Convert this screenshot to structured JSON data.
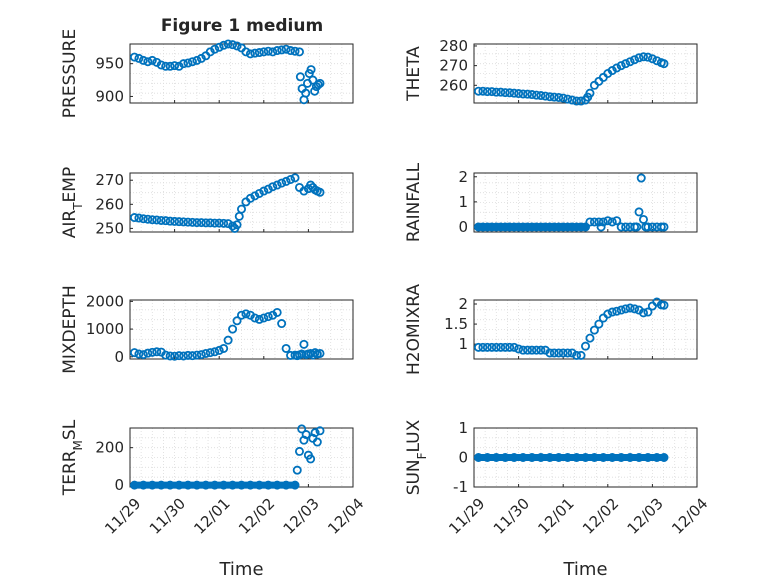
{
  "figure": {
    "title": "Figure 1 medium",
    "x_axis_label": "Time",
    "x_ticks": [
      "11/29",
      "11/30",
      "12/01",
      "12/02",
      "12/03",
      "12/04"
    ]
  },
  "colors": {
    "marker": "#0072BD",
    "axes": "#262626",
    "grid": "#dcdcdc"
  },
  "chart_data": [
    {
      "type": "scatter",
      "ylabel": "PRESSURE",
      "ylim": [
        890,
        980
      ],
      "yticks": [
        900,
        950
      ],
      "xlim": [
        "11/29",
        "12/04"
      ],
      "grid": true,
      "x": [
        0.1,
        0.2,
        0.3,
        0.4,
        0.5,
        0.6,
        0.7,
        0.8,
        0.9,
        1.0,
        1.1,
        1.2,
        1.3,
        1.4,
        1.5,
        1.6,
        1.7,
        1.8,
        1.9,
        2.0,
        2.1,
        2.2,
        2.3,
        2.4,
        2.5,
        2.6,
        2.7,
        2.8,
        2.9,
        3.0,
        3.1,
        3.2,
        3.3,
        3.4,
        3.5,
        3.6,
        3.7,
        3.8,
        3.82,
        3.86,
        3.9,
        3.94,
        3.98,
        4.02,
        4.06,
        4.1,
        4.14,
        4.18,
        4.22,
        4.26
      ],
      "values": [
        960,
        958,
        955,
        953,
        955,
        952,
        948,
        946,
        946,
        947,
        946,
        950,
        951,
        953,
        955,
        958,
        962,
        968,
        972,
        975,
        978,
        980,
        979,
        977,
        974,
        968,
        965,
        966,
        967,
        968,
        969,
        968,
        970,
        971,
        972,
        970,
        969,
        968,
        930,
        912,
        895,
        905,
        920,
        935,
        941,
        925,
        908,
        915,
        918,
        920
      ]
    },
    {
      "type": "scatter",
      "ylabel": "THETA",
      "ylim": [
        251,
        281
      ],
      "yticks": [
        260,
        270,
        280
      ],
      "xlim": [
        "11/29",
        "12/04"
      ],
      "grid": true,
      "x": [
        0.1,
        0.2,
        0.3,
        0.4,
        0.5,
        0.6,
        0.7,
        0.8,
        0.9,
        1.0,
        1.1,
        1.2,
        1.3,
        1.4,
        1.5,
        1.6,
        1.7,
        1.8,
        1.9,
        2.0,
        2.1,
        2.2,
        2.3,
        2.4,
        2.5,
        2.55,
        2.6,
        2.7,
        2.8,
        2.9,
        3.0,
        3.1,
        3.2,
        3.3,
        3.4,
        3.5,
        3.6,
        3.7,
        3.8,
        3.9,
        4.0,
        4.1,
        4.2,
        4.26
      ],
      "values": [
        257,
        257,
        256.8,
        256.8,
        256.5,
        256.5,
        256.3,
        256.2,
        256,
        255.8,
        255.6,
        255.5,
        255.3,
        255,
        254.8,
        254.5,
        254.2,
        254,
        253.8,
        253.5,
        253,
        252.5,
        252,
        252,
        252.5,
        254,
        256,
        260,
        262,
        264,
        266,
        267.5,
        268.8,
        270,
        271,
        272,
        273,
        274,
        274.5,
        274.3,
        273.5,
        272.5,
        271.5,
        271
      ]
    },
    {
      "type": "scatter",
      "ylabel": "AIR_TEMP",
      "ylim": [
        248.5,
        273
      ],
      "yticks": [
        250,
        260,
        270
      ],
      "xlim": [
        "11/29",
        "12/04"
      ],
      "grid": true,
      "x": [
        0.1,
        0.2,
        0.3,
        0.4,
        0.5,
        0.6,
        0.7,
        0.8,
        0.9,
        1.0,
        1.1,
        1.2,
        1.3,
        1.4,
        1.5,
        1.6,
        1.7,
        1.8,
        1.9,
        2.0,
        2.1,
        2.2,
        2.3,
        2.35,
        2.4,
        2.45,
        2.5,
        2.6,
        2.7,
        2.8,
        2.9,
        3.0,
        3.1,
        3.2,
        3.3,
        3.4,
        3.5,
        3.6,
        3.7,
        3.8,
        3.9,
        4.0,
        4.05,
        4.1,
        4.15,
        4.2,
        4.26
      ],
      "values": [
        254.5,
        254.3,
        254,
        253.8,
        253.6,
        253.5,
        253.3,
        253.2,
        253,
        252.9,
        252.8,
        252.7,
        252.6,
        252.5,
        252.4,
        252.4,
        252.3,
        252.3,
        252.2,
        252.2,
        252.1,
        252,
        251,
        250,
        251.5,
        255,
        258,
        261,
        262.5,
        263.5,
        264.5,
        265.5,
        266.3,
        267.3,
        268,
        268.8,
        269.5,
        270.3,
        271,
        267,
        265.5,
        266.5,
        268,
        267,
        266,
        265.5,
        265
      ]
    },
    {
      "type": "scatter",
      "ylabel": "RAINFALL",
      "ylim": [
        -0.2,
        2.15
      ],
      "yticks": [
        0,
        1,
        2
      ],
      "xlim": [
        "11/29",
        "12/04"
      ],
      "grid": true,
      "x": [
        0.1,
        0.2,
        0.3,
        0.4,
        0.5,
        0.6,
        0.7,
        0.8,
        0.9,
        1.0,
        1.1,
        1.2,
        1.3,
        1.4,
        1.5,
        1.6,
        1.7,
        1.8,
        1.9,
        2.0,
        2.1,
        2.2,
        2.3,
        2.4,
        2.5,
        2.6,
        2.7,
        2.8,
        2.85,
        2.9,
        3.0,
        3.1,
        3.2,
        3.3,
        3.4,
        3.5,
        3.6,
        3.65,
        3.7,
        3.75,
        3.8,
        3.85,
        3.9,
        4.0,
        4.1,
        4.2,
        4.26
      ],
      "values": [
        0,
        0,
        0,
        0,
        0,
        0,
        0,
        0,
        0,
        0,
        0,
        0,
        0,
        0,
        0,
        0,
        0,
        0,
        0,
        0,
        0,
        0,
        0,
        0,
        0,
        0.2,
        0.2,
        0.2,
        0,
        0.2,
        0.25,
        0.2,
        0.25,
        0,
        0,
        0,
        0,
        0,
        0.6,
        1.95,
        0.3,
        0,
        0,
        0,
        0,
        0,
        0
      ]
    },
    {
      "type": "scatter",
      "ylabel": "MIXDEPTH",
      "ylim": [
        -80,
        2050
      ],
      "yticks": [
        0,
        1000,
        2000
      ],
      "xlim": [
        "11/29",
        "12/04"
      ],
      "grid": true,
      "x": [
        0.1,
        0.2,
        0.3,
        0.4,
        0.5,
        0.6,
        0.7,
        0.8,
        0.9,
        1.0,
        1.1,
        1.2,
        1.3,
        1.4,
        1.5,
        1.6,
        1.7,
        1.8,
        1.9,
        2.0,
        2.1,
        2.2,
        2.3,
        2.4,
        2.5,
        2.6,
        2.7,
        2.8,
        2.9,
        3.0,
        3.1,
        3.2,
        3.3,
        3.4,
        3.5,
        3.6,
        3.7,
        3.75,
        3.8,
        3.85,
        3.9,
        3.95,
        4.0,
        4.05,
        4.1,
        4.15,
        4.2,
        4.26
      ],
      "values": [
        150,
        100,
        80,
        130,
        160,
        180,
        170,
        60,
        30,
        20,
        40,
        30,
        50,
        40,
        60,
        80,
        120,
        150,
        180,
        230,
        300,
        600,
        1000,
        1300,
        1500,
        1550,
        1500,
        1400,
        1350,
        1400,
        1450,
        1500,
        1600,
        1200,
        300,
        50,
        60,
        40,
        70,
        100,
        450,
        80,
        100,
        120,
        60,
        150,
        100,
        120
      ]
    },
    {
      "type": "scatter",
      "ylabel": "H2OMIXRA",
      "ylim": [
        0.63,
        2.1
      ],
      "yticks": [
        1,
        1.5,
        2
      ],
      "xlim": [
        "11/29",
        "12/04"
      ],
      "grid": true,
      "x": [
        0.1,
        0.2,
        0.3,
        0.4,
        0.5,
        0.6,
        0.7,
        0.8,
        0.9,
        1.0,
        1.1,
        1.2,
        1.3,
        1.4,
        1.5,
        1.6,
        1.7,
        1.8,
        1.9,
        2.0,
        2.1,
        2.2,
        2.3,
        2.4,
        2.5,
        2.6,
        2.7,
        2.8,
        2.9,
        3.0,
        3.1,
        3.2,
        3.3,
        3.4,
        3.5,
        3.6,
        3.7,
        3.8,
        3.9,
        4.0,
        4.1,
        4.2,
        4.26
      ],
      "values": [
        0.92,
        0.92,
        0.92,
        0.92,
        0.92,
        0.92,
        0.92,
        0.92,
        0.92,
        0.88,
        0.85,
        0.85,
        0.85,
        0.85,
        0.85,
        0.85,
        0.78,
        0.78,
        0.78,
        0.78,
        0.78,
        0.78,
        0.72,
        0.72,
        0.95,
        1.15,
        1.35,
        1.5,
        1.65,
        1.75,
        1.8,
        1.82,
        1.85,
        1.88,
        1.9,
        1.88,
        1.85,
        1.78,
        1.8,
        1.95,
        2.05,
        1.98,
        1.97
      ]
    },
    {
      "type": "scatter",
      "ylabel": "TERR_MSL",
      "ylim": [
        -10,
        305
      ],
      "yticks": [
        0,
        200
      ],
      "xlim": [
        "11/29",
        "12/04"
      ],
      "grid": true,
      "x": [
        0.1,
        0.3,
        0.5,
        0.7,
        0.9,
        1.1,
        1.3,
        1.5,
        1.7,
        1.9,
        2.1,
        2.3,
        2.5,
        2.7,
        2.9,
        3.1,
        3.3,
        3.5,
        3.7,
        3.75,
        3.8,
        3.85,
        3.9,
        3.95,
        4.0,
        4.05,
        4.1,
        4.15,
        4.2,
        4.26
      ],
      "values": [
        0,
        0,
        0,
        0,
        0,
        0,
        0,
        0,
        0,
        0,
        0,
        0,
        0,
        0,
        0,
        0,
        0,
        0,
        0,
        80,
        180,
        300,
        240,
        270,
        160,
        140,
        250,
        280,
        230,
        290
      ]
    },
    {
      "type": "scatter",
      "ylabel": "SUN_FLUX",
      "ylim": [
        -1,
        1
      ],
      "yticks": [
        -1,
        0,
        1
      ],
      "xlim": [
        "11/29",
        "12/04"
      ],
      "grid": true,
      "x": [
        0.1,
        0.3,
        0.5,
        0.7,
        0.9,
        1.1,
        1.3,
        1.5,
        1.7,
        1.9,
        2.1,
        2.3,
        2.5,
        2.7,
        2.9,
        3.1,
        3.3,
        3.5,
        3.7,
        3.9,
        4.1,
        4.26
      ],
      "values": [
        0,
        0,
        0,
        0,
        0,
        0,
        0,
        0,
        0,
        0,
        0,
        0,
        0,
        0,
        0,
        0,
        0,
        0,
        0,
        0,
        0,
        0
      ]
    }
  ]
}
